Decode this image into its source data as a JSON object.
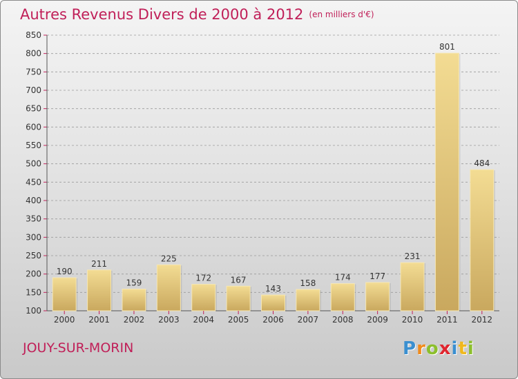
{
  "header": {
    "title": "Autres Revenus Divers de 2000 à 2012",
    "subtitle": "(en milliers d'€)"
  },
  "footer": {
    "location": "JOUY-SUR-MORIN",
    "brand": "Proxiti",
    "brand_letters": [
      {
        "ch": "P",
        "color": "#3a8fd0"
      },
      {
        "ch": "r",
        "color": "#f08b1c"
      },
      {
        "ch": "o",
        "color": "#8cbf2c"
      },
      {
        "ch": "x",
        "color": "#e0262f"
      },
      {
        "ch": "i",
        "color": "#3a8fd0"
      },
      {
        "ch": "t",
        "color": "#f0b81c"
      },
      {
        "ch": "i",
        "color": "#8cbf2c"
      }
    ]
  },
  "colors": {
    "title": "#c01f58",
    "bar_light": "#f3dc93",
    "bar_dark": "#c9a85e",
    "grid": "#9a9a9a",
    "tick_mark": "#c01f58"
  },
  "chart_data": {
    "type": "bar",
    "categories": [
      "2000",
      "2001",
      "2002",
      "2003",
      "2004",
      "2005",
      "2006",
      "2007",
      "2008",
      "2009",
      "2010",
      "2011",
      "2012"
    ],
    "values": [
      190,
      211,
      159,
      225,
      172,
      167,
      143,
      158,
      174,
      177,
      231,
      801,
      484
    ],
    "ylim": [
      100,
      850
    ],
    "yticks": [
      100,
      150,
      200,
      250,
      300,
      350,
      400,
      450,
      500,
      550,
      600,
      650,
      700,
      750,
      800,
      850
    ],
    "grid": true
  }
}
